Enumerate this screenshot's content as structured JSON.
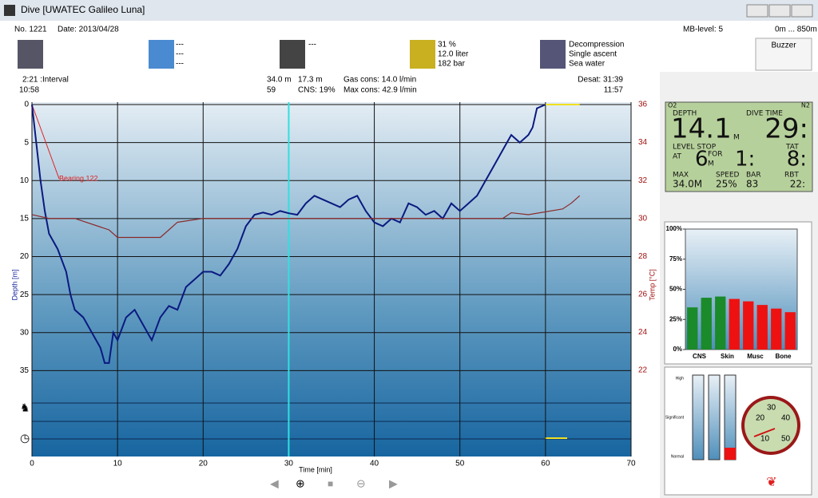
{
  "window": {
    "title": "Dive  [UWATEC Galileo Luna]"
  },
  "header": {
    "number": "No. 1221",
    "date": "Date: 2013/04/28",
    "mb_level": "MB-level: 5",
    "altitude": "0m ... 850m",
    "buzzer": "Buzzer",
    "weather": [
      "---",
      "---",
      "---"
    ],
    "camera": "---",
    "tank": [
      "31 %",
      "12.0 liter",
      "182 bar"
    ],
    "dive_type": [
      "Decompression",
      "Single ascent",
      "Sea water"
    ]
  },
  "info": {
    "interval": "2:21 :Interval",
    "start": "10:58",
    "max_depth": "34.0 m",
    "avg_depth": "17.3 m",
    "duration": "59",
    "cns": "CNS: 19%",
    "gas_cons": "Gas cons: 14.0 l/min",
    "max_cons": "Max cons: 42.9 l/min",
    "desat": "Desat: 31:39",
    "end": "11:57"
  },
  "chart_data": {
    "type": "line",
    "xlabel": "Time [min]",
    "ylabel": "Depth [m]",
    "y2label": "Temp [°C]",
    "xlim": [
      0,
      70
    ],
    "xticks": [
      0,
      10,
      20,
      30,
      40,
      50,
      60,
      70
    ],
    "ylim": [
      0,
      46.3
    ],
    "yticks": [
      0,
      5,
      10,
      15,
      20,
      25,
      30,
      35
    ],
    "y2lim": [
      36,
      17.46
    ],
    "y2ticks": [
      36,
      34,
      32,
      30,
      28,
      26,
      24,
      22
    ],
    "grid": true,
    "cursor": 30,
    "annotation": "Bearing 122",
    "series": [
      {
        "color": "#0a1a80",
        "x": [
          0,
          0.5,
          1,
          1.5,
          2,
          3,
          4,
          4.5,
          5,
          6,
          7,
          8,
          8.5,
          9,
          9.5,
          10,
          11,
          12,
          13,
          14,
          15,
          16,
          17,
          18,
          19,
          20,
          21,
          22,
          23,
          24,
          25,
          26,
          27,
          28,
          29,
          30,
          31,
          32,
          33,
          34,
          35,
          36,
          37,
          38,
          39,
          40,
          41,
          42,
          43,
          44,
          45,
          46,
          47,
          48,
          49,
          50,
          51,
          52,
          53,
          54,
          55,
          56,
          57,
          58,
          58.5,
          59,
          60
        ],
        "values": [
          0,
          5,
          10,
          14,
          17,
          19,
          22,
          25,
          27,
          28,
          30,
          32,
          34,
          34,
          30,
          31,
          28,
          27,
          29,
          31,
          28,
          26.5,
          27,
          24,
          23,
          22,
          22,
          22.5,
          21,
          19,
          16,
          14.5,
          14.2,
          14.5,
          14,
          14.3,
          14.5,
          13,
          12,
          12.5,
          13,
          13.5,
          12.5,
          12,
          14,
          15.5,
          16,
          15,
          15.5,
          13,
          13.5,
          14.5,
          14,
          15,
          13,
          14,
          13,
          12,
          10,
          8,
          6,
          4,
          5,
          4,
          3,
          0.5,
          0
        ]
      },
      {
        "color": "#8b2a2a",
        "axis": "y2",
        "x": [
          0,
          2,
          5,
          9,
          10,
          15,
          16,
          17,
          20,
          40,
          55,
          56,
          58,
          62,
          63,
          64
        ],
        "values": [
          30.2,
          30,
          30,
          29.4,
          29,
          29,
          29.4,
          29.8,
          30,
          30,
          30,
          30.3,
          30.2,
          30.5,
          30.8,
          31.2
        ]
      }
    ]
  },
  "computer": {
    "o2": "O2",
    "n2": "N2",
    "depth_label": "DEPTH",
    "depth": "14.1",
    "depth_unit": "M",
    "time_label": "DIVE TIME",
    "time": "29:",
    "stop_label": "LEVEL STOP",
    "at": "AT",
    "for": "FOR",
    "stop_depth": "6",
    "stop_unit": "M",
    "stop_time": "1:",
    "tat_label": "TAT",
    "tat": "8:",
    "max_label": "MAX",
    "max": "34.0M",
    "speed_label": "SPEED",
    "speed": "25%",
    "bar_label": "BAR",
    "bar": "83",
    "rbt_label": "RBT",
    "rbt": "22:"
  },
  "tissue_chart": {
    "type": "bar",
    "categories": [
      null,
      "CNS",
      null,
      "Skin",
      null,
      "Musc",
      null,
      "Bone"
    ],
    "values": [
      35,
      43,
      44,
      42,
      40,
      37,
      34,
      31
    ],
    "colors": [
      "#1a8a2a",
      "#1a8a2a",
      "#1a8a2a",
      "#ee1111",
      "#ee1111",
      "#ee1111",
      "#ee1111",
      "#ee1111"
    ],
    "ylim": [
      0,
      100
    ],
    "yticks": [
      {
        "value": 0,
        "label": "0%"
      },
      {
        "value": 25,
        "label": "25%"
      },
      {
        "value": 50,
        "label": "50%"
      },
      {
        "value": 75,
        "label": "75%"
      },
      {
        "value": 100,
        "label": "100%"
      }
    ]
  },
  "gauges": {
    "levels": [
      "High",
      "Significant",
      "Normal"
    ],
    "dial": [
      "10",
      "20",
      "30",
      "40",
      "50"
    ]
  }
}
